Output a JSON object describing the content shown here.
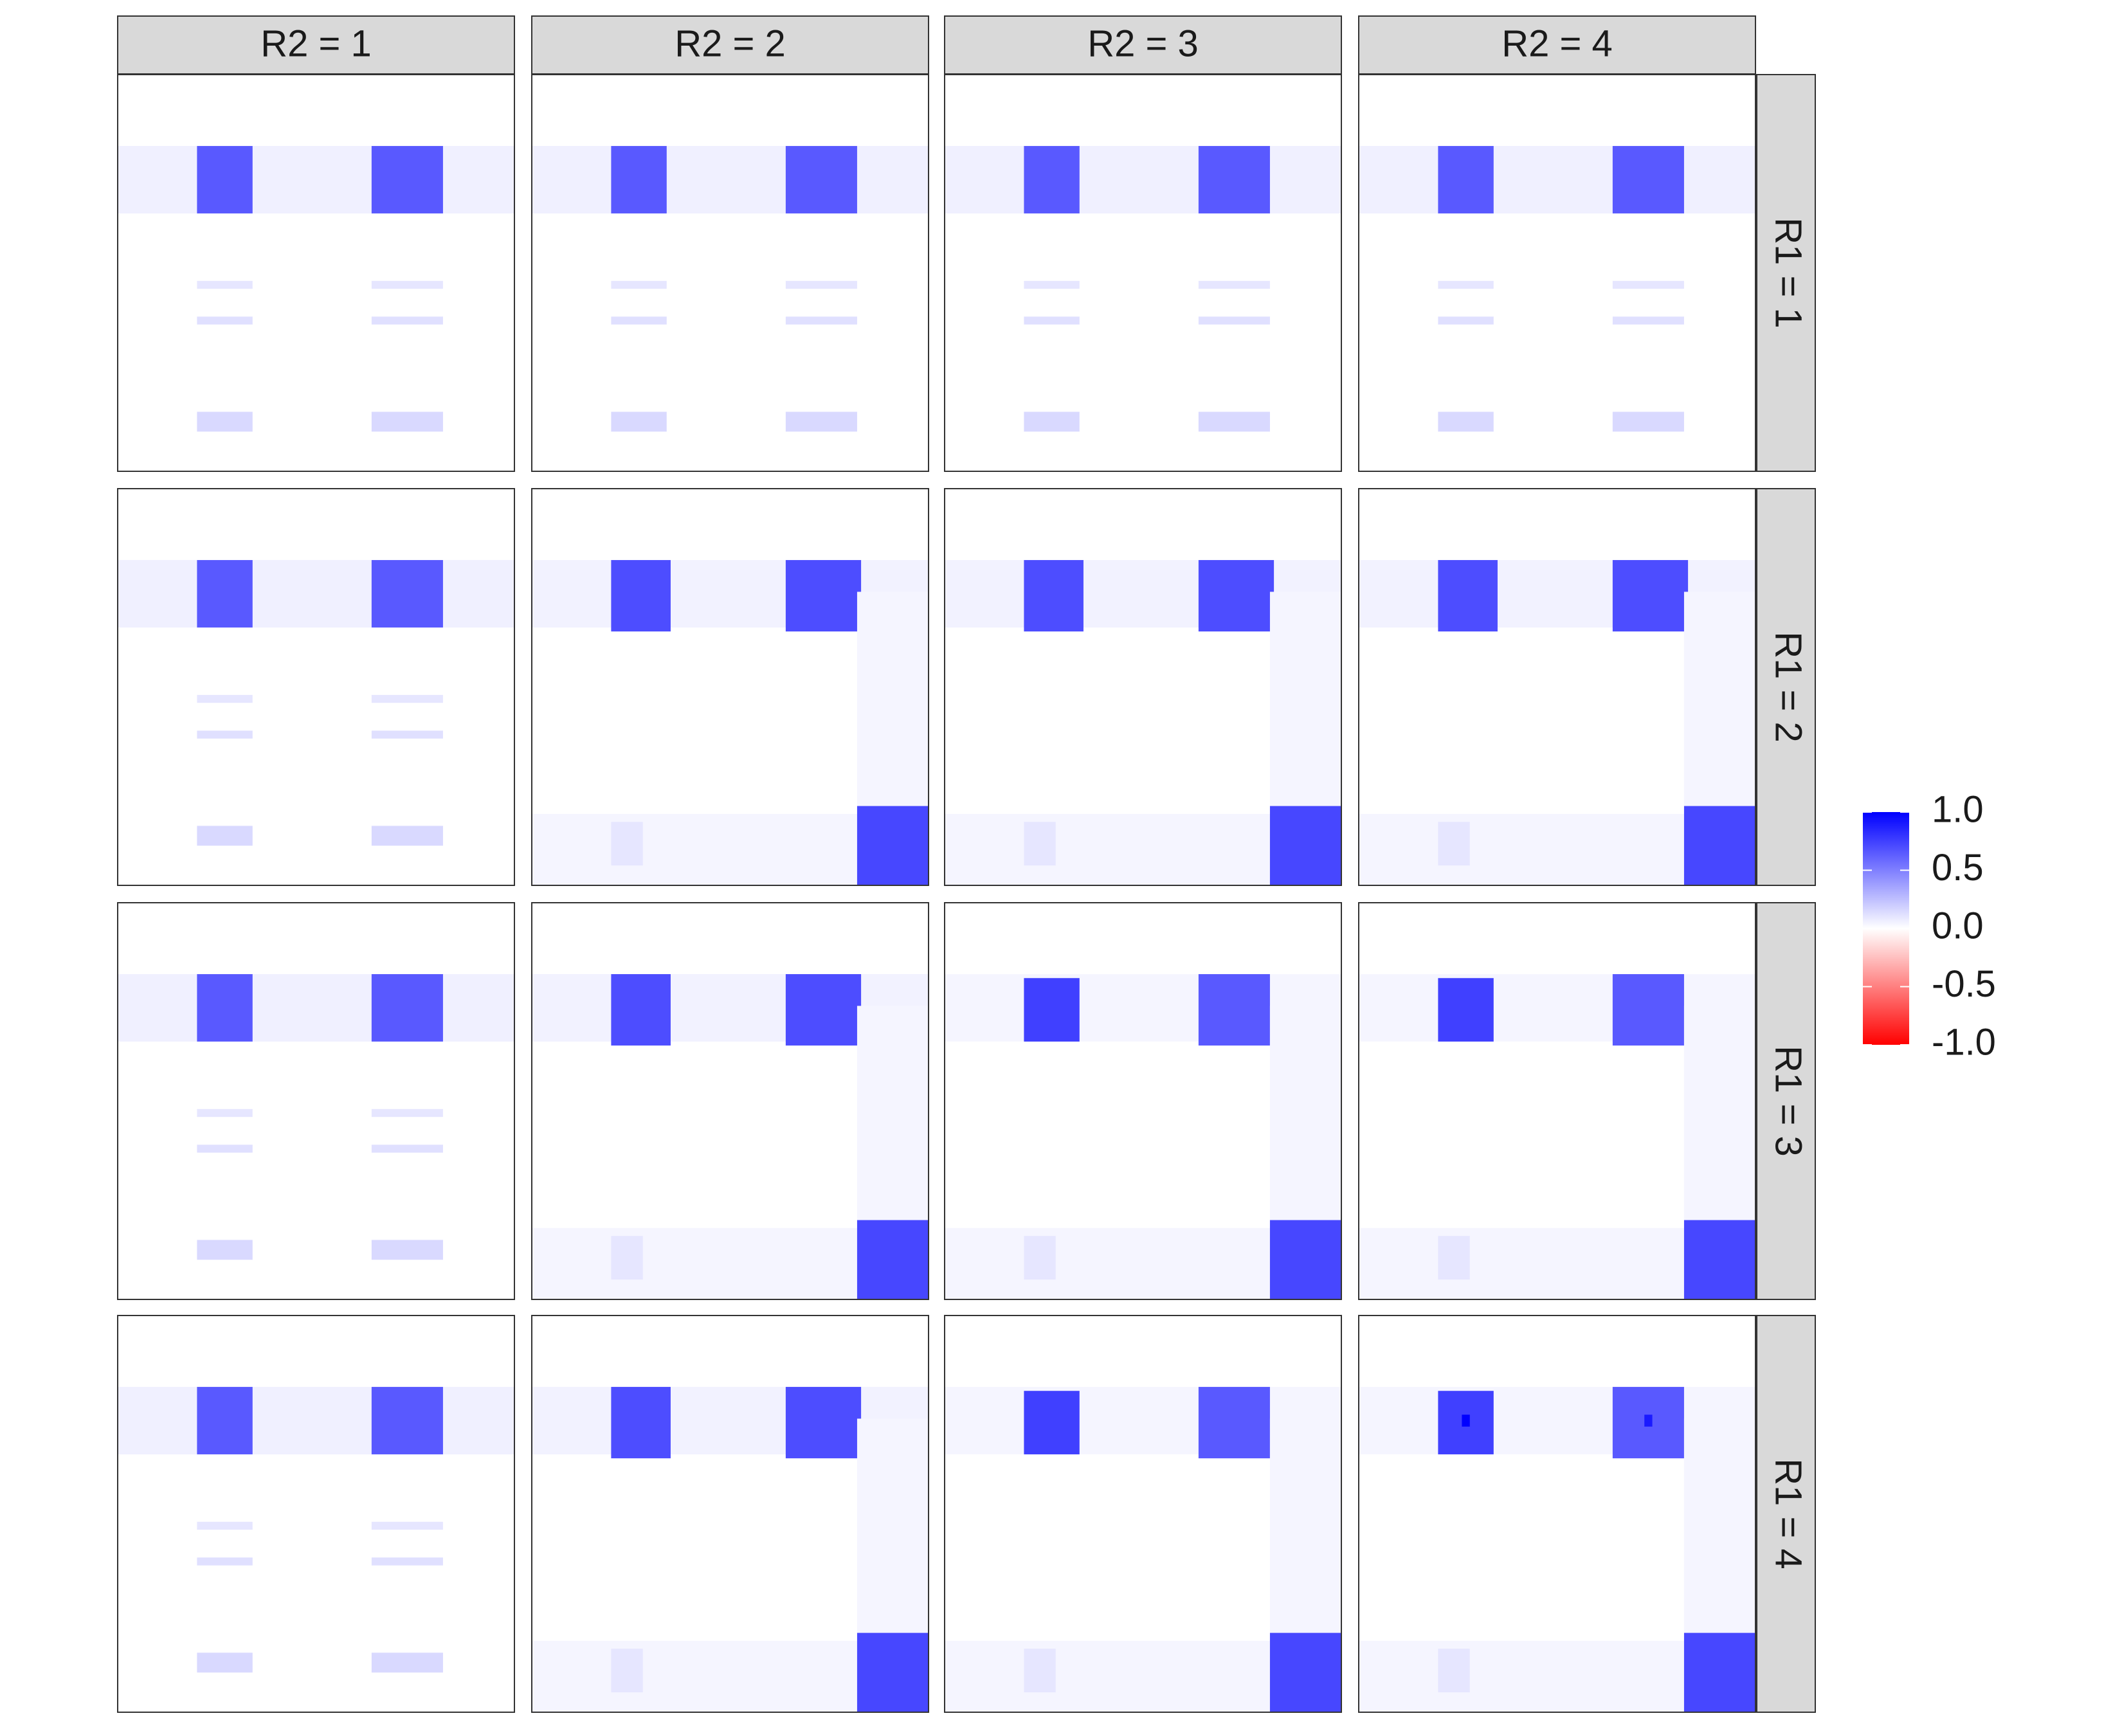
{
  "chart_data": {
    "type": "heatmap",
    "col_labels": [
      "R2 = 1",
      "R2 = 2",
      "R2 = 3",
      "R2 = 4"
    ],
    "row_labels": [
      "R1 = 1",
      "R1 = 2",
      "R1 = 3",
      "R1 = 4"
    ],
    "xlim": [
      0,
      100
    ],
    "ylim": [
      0,
      100
    ],
    "colorbar": {
      "lim": [
        -1,
        1
      ],
      "low": "#ff0000",
      "mid": "#ffffff",
      "high": "#0000ff",
      "ticks": [
        {
          "value": 1,
          "label": "1.0"
        },
        0.5,
        {
          "value": 0,
          "label": "0.0"
        },
        -0.5,
        {
          "value": -1,
          "label": "-1.0"
        }
      ]
    },
    "panels": [
      [
        [
          [
            0,
            100,
            18,
            35,
            0.06
          ],
          [
            20,
            34,
            18,
            35,
            0.65
          ],
          [
            64,
            82,
            18,
            35,
            0.65
          ],
          [
            20,
            34,
            52,
            54,
            0.1
          ],
          [
            64,
            82,
            52,
            54,
            0.1
          ],
          [
            20,
            34,
            61,
            63,
            0.12
          ],
          [
            64,
            82,
            61,
            63,
            0.12
          ],
          [
            20,
            34,
            85,
            90,
            0.15
          ],
          [
            64,
            82,
            85,
            90,
            0.15
          ]
        ],
        [
          [
            0,
            100,
            18,
            35,
            0.06
          ],
          [
            20,
            34,
            18,
            35,
            0.65
          ],
          [
            64,
            82,
            18,
            35,
            0.65
          ],
          [
            20,
            34,
            52,
            54,
            0.1
          ],
          [
            64,
            82,
            52,
            54,
            0.1
          ],
          [
            20,
            34,
            61,
            63,
            0.12
          ],
          [
            64,
            82,
            61,
            63,
            0.12
          ],
          [
            20,
            34,
            85,
            90,
            0.15
          ],
          [
            64,
            82,
            85,
            90,
            0.15
          ]
        ],
        [
          [
            0,
            100,
            18,
            35,
            0.06
          ],
          [
            20,
            34,
            18,
            35,
            0.65
          ],
          [
            64,
            82,
            18,
            35,
            0.65
          ],
          [
            20,
            34,
            52,
            54,
            0.1
          ],
          [
            64,
            82,
            52,
            54,
            0.1
          ],
          [
            20,
            34,
            61,
            63,
            0.12
          ],
          [
            64,
            82,
            61,
            63,
            0.12
          ],
          [
            20,
            34,
            85,
            90,
            0.15
          ],
          [
            64,
            82,
            85,
            90,
            0.15
          ]
        ],
        [
          [
            0,
            100,
            18,
            35,
            0.06
          ],
          [
            20,
            34,
            18,
            35,
            0.65
          ],
          [
            64,
            82,
            18,
            35,
            0.65
          ],
          [
            20,
            34,
            52,
            54,
            0.1
          ],
          [
            64,
            82,
            52,
            54,
            0.1
          ],
          [
            20,
            34,
            61,
            63,
            0.12
          ],
          [
            64,
            82,
            61,
            63,
            0.12
          ],
          [
            20,
            34,
            85,
            90,
            0.15
          ],
          [
            64,
            82,
            85,
            90,
            0.15
          ]
        ]
      ],
      [
        [
          [
            0,
            100,
            18,
            35,
            0.06
          ],
          [
            20,
            34,
            18,
            35,
            0.65
          ],
          [
            64,
            82,
            18,
            35,
            0.65
          ],
          [
            20,
            34,
            52,
            54,
            0.1
          ],
          [
            64,
            82,
            52,
            54,
            0.1
          ],
          [
            20,
            34,
            61,
            63,
            0.12
          ],
          [
            64,
            82,
            61,
            63,
            0.12
          ],
          [
            20,
            34,
            85,
            90,
            0.15
          ],
          [
            64,
            82,
            85,
            90,
            0.15
          ]
        ],
        [
          [
            0,
            100,
            18,
            35,
            0.05
          ],
          [
            20,
            35,
            18,
            36,
            0.7
          ],
          [
            64,
            83,
            18,
            36,
            0.7
          ],
          [
            82,
            100,
            26,
            100,
            0.04
          ],
          [
            0,
            82,
            82,
            100,
            0.04
          ],
          [
            20,
            28,
            84,
            95,
            0.1
          ],
          [
            82,
            100,
            80,
            100,
            0.72
          ]
        ],
        [
          [
            0,
            100,
            18,
            35,
            0.05
          ],
          [
            20,
            35,
            18,
            36,
            0.7
          ],
          [
            64,
            83,
            18,
            36,
            0.7
          ],
          [
            82,
            100,
            26,
            100,
            0.04
          ],
          [
            0,
            82,
            82,
            100,
            0.04
          ],
          [
            20,
            28,
            84,
            95,
            0.1
          ],
          [
            82,
            100,
            80,
            100,
            0.72
          ]
        ],
        [
          [
            0,
            100,
            18,
            35,
            0.05
          ],
          [
            20,
            35,
            18,
            36,
            0.7
          ],
          [
            64,
            83,
            18,
            36,
            0.7
          ],
          [
            82,
            100,
            26,
            100,
            0.04
          ],
          [
            0,
            82,
            82,
            100,
            0.04
          ],
          [
            20,
            28,
            84,
            95,
            0.1
          ],
          [
            82,
            100,
            80,
            100,
            0.72
          ]
        ]
      ],
      [
        [
          [
            0,
            100,
            18,
            35,
            0.06
          ],
          [
            20,
            34,
            18,
            35,
            0.65
          ],
          [
            64,
            82,
            18,
            35,
            0.65
          ],
          [
            20,
            34,
            52,
            54,
            0.1
          ],
          [
            64,
            82,
            52,
            54,
            0.1
          ],
          [
            20,
            34,
            61,
            63,
            0.12
          ],
          [
            64,
            82,
            61,
            63,
            0.12
          ],
          [
            20,
            34,
            85,
            90,
            0.15
          ],
          [
            64,
            82,
            85,
            90,
            0.15
          ]
        ],
        [
          [
            0,
            100,
            18,
            35,
            0.05
          ],
          [
            20,
            35,
            18,
            36,
            0.7
          ],
          [
            64,
            83,
            18,
            36,
            0.7
          ],
          [
            82,
            100,
            26,
            100,
            0.04
          ],
          [
            0,
            82,
            82,
            100,
            0.04
          ],
          [
            20,
            28,
            84,
            95,
            0.1
          ],
          [
            82,
            100,
            80,
            100,
            0.72
          ]
        ],
        [
          [
            0,
            100,
            18,
            35,
            0.04
          ],
          [
            20,
            34,
            19,
            35,
            0.75
          ],
          [
            64,
            82,
            18,
            36,
            0.65
          ],
          [
            82,
            100,
            26,
            100,
            0.04
          ],
          [
            0,
            82,
            82,
            100,
            0.04
          ],
          [
            20,
            28,
            84,
            95,
            0.1
          ],
          [
            82,
            100,
            80,
            100,
            0.72
          ]
        ],
        [
          [
            0,
            100,
            18,
            35,
            0.04
          ],
          [
            20,
            34,
            19,
            35,
            0.75
          ],
          [
            64,
            82,
            18,
            36,
            0.65
          ],
          [
            82,
            100,
            26,
            100,
            0.04
          ],
          [
            0,
            82,
            82,
            100,
            0.04
          ],
          [
            20,
            28,
            84,
            95,
            0.1
          ],
          [
            82,
            100,
            80,
            100,
            0.72
          ]
        ]
      ],
      [
        [
          [
            0,
            100,
            18,
            35,
            0.06
          ],
          [
            20,
            34,
            18,
            35,
            0.65
          ],
          [
            64,
            82,
            18,
            35,
            0.65
          ],
          [
            20,
            34,
            52,
            54,
            0.1
          ],
          [
            64,
            82,
            52,
            54,
            0.1
          ],
          [
            20,
            34,
            61,
            63,
            0.12
          ],
          [
            64,
            82,
            61,
            63,
            0.12
          ],
          [
            20,
            34,
            85,
            90,
            0.15
          ],
          [
            64,
            82,
            85,
            90,
            0.15
          ]
        ],
        [
          [
            0,
            100,
            18,
            35,
            0.05
          ],
          [
            20,
            35,
            18,
            36,
            0.7
          ],
          [
            64,
            83,
            18,
            36,
            0.7
          ],
          [
            82,
            100,
            26,
            100,
            0.04
          ],
          [
            0,
            82,
            82,
            100,
            0.04
          ],
          [
            20,
            28,
            84,
            95,
            0.1
          ],
          [
            82,
            100,
            80,
            100,
            0.72
          ]
        ],
        [
          [
            0,
            100,
            18,
            35,
            0.04
          ],
          [
            20,
            34,
            19,
            35,
            0.75
          ],
          [
            64,
            82,
            18,
            36,
            0.65
          ],
          [
            82,
            100,
            26,
            100,
            0.04
          ],
          [
            0,
            82,
            82,
            100,
            0.04
          ],
          [
            20,
            28,
            84,
            95,
            0.1
          ],
          [
            82,
            100,
            80,
            100,
            0.72
          ]
        ],
        [
          [
            0,
            100,
            18,
            35,
            0.04
          ],
          [
            20,
            34,
            19,
            35,
            0.75
          ],
          [
            64,
            82,
            18,
            36,
            0.65
          ],
          [
            82,
            100,
            26,
            100,
            0.04
          ],
          [
            0,
            82,
            82,
            100,
            0.04
          ],
          [
            20,
            28,
            84,
            95,
            0.1
          ],
          [
            82,
            100,
            80,
            100,
            0.72
          ],
          [
            26,
            28,
            25,
            28,
            1.0
          ],
          [
            72,
            74,
            25,
            28,
            0.9
          ]
        ]
      ]
    ]
  }
}
